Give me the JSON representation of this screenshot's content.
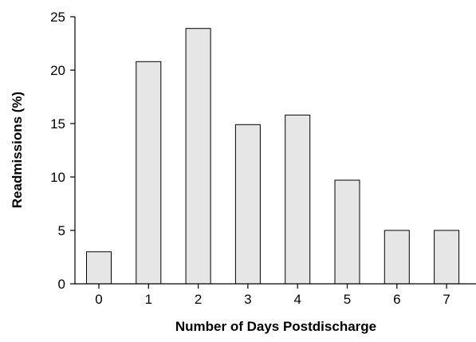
{
  "chart_data": {
    "type": "bar",
    "title": "",
    "xlabel": "Number of Days Postdischarge",
    "ylabel": "Readmissions (%)",
    "categories": [
      "0",
      "1",
      "2",
      "3",
      "4",
      "5",
      "6",
      "7"
    ],
    "values": [
      3,
      20.8,
      23.9,
      14.9,
      15.8,
      9.7,
      5,
      5
    ],
    "ylim": [
      0,
      25
    ],
    "yticks": [
      "0",
      "5",
      "10",
      "15",
      "20",
      "25"
    ],
    "grid": false,
    "legend": "none",
    "bar_fill": "#e6e6e6",
    "bar_stroke": "#000000"
  }
}
